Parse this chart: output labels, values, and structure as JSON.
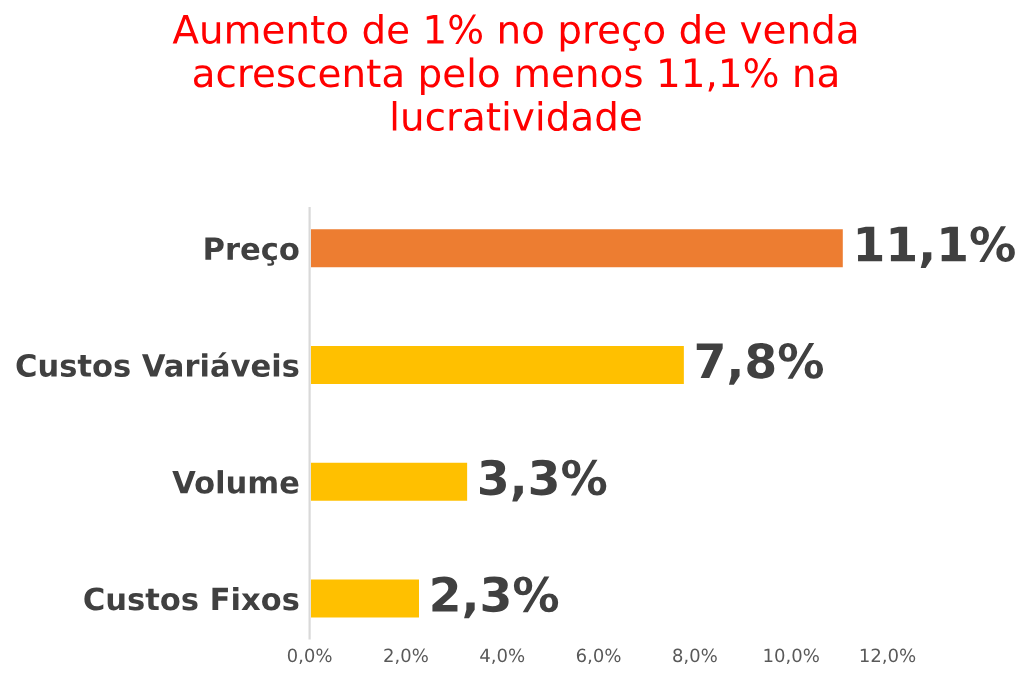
{
  "chart_data": {
    "type": "bar",
    "orientation": "horizontal",
    "title": "Aumento de 1% no preço de venda\nacrescenta pelo menos 11,1% na\nlucratividade",
    "categories": [
      "Preço",
      "Custos Variáveis",
      "Volume",
      "Custos Fixos"
    ],
    "values": [
      11.1,
      7.8,
      3.3,
      2.3
    ],
    "colors": [
      "#ed7d31",
      "#ffc000",
      "#ffc000",
      "#ffc000"
    ],
    "value_labels": [
      "11,1%",
      "7,8%",
      "3,3%",
      "2,3%"
    ],
    "xlim": [
      0,
      12
    ],
    "xticks": [
      {
        "value": 0,
        "label": "0,0%"
      },
      {
        "value": 2,
        "label": "2,0%"
      },
      {
        "value": 4,
        "label": "4,0%"
      },
      {
        "value": 6,
        "label": "6,0%"
      },
      {
        "value": 8,
        "label": "8,0%"
      },
      {
        "value": 10,
        "label": "10,0%"
      },
      {
        "value": 12,
        "label": "12,0%"
      }
    ],
    "grid": false
  }
}
